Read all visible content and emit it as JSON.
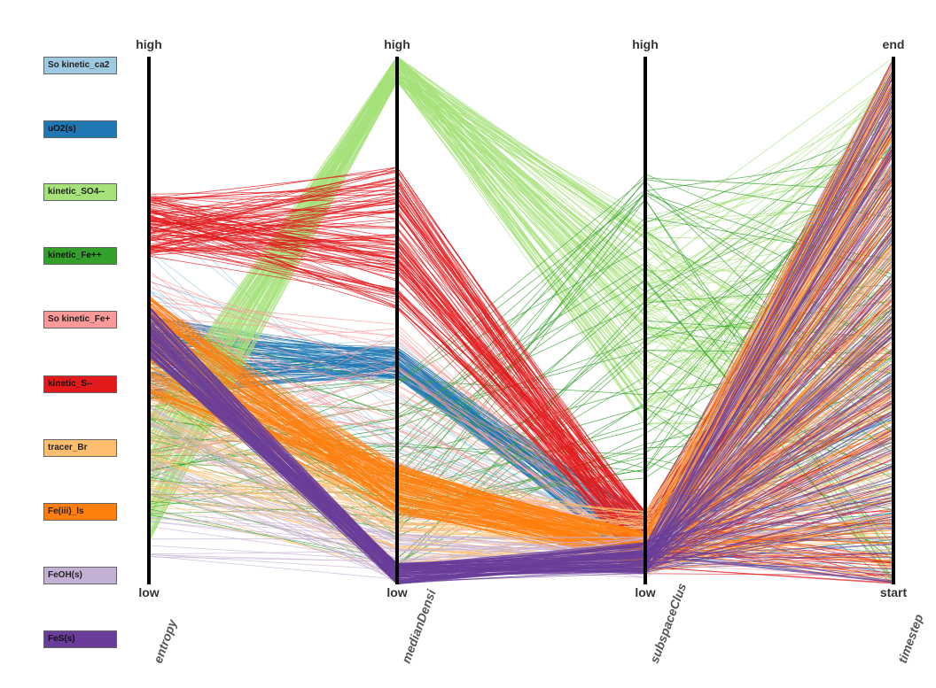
{
  "chart_data": {
    "type": "parallel-coordinates",
    "axes": [
      {
        "name": "entropy",
        "top_label": "high",
        "bottom_label": "low"
      },
      {
        "name": "medianDensi",
        "top_label": "high",
        "bottom_label": "low"
      },
      {
        "name": "subspaceClus",
        "top_label": "high",
        "bottom_label": "low"
      },
      {
        "name": "timestep",
        "top_label": "end",
        "bottom_label": "start"
      }
    ],
    "series": [
      {
        "name": "So kinetic_ca2",
        "color": "#9ecae1"
      },
      {
        "name": "uO2(s)",
        "color": "#1f78b4"
      },
      {
        "name": "kinetic_SO4--",
        "color": "#a6e27a"
      },
      {
        "name": "kinetic_Fe++",
        "color": "#33a02c"
      },
      {
        "name": "So kinetic_Fe+",
        "color": "#fb9a99"
      },
      {
        "name": "kinetic_S--",
        "color": "#e31a1c"
      },
      {
        "name": "tracer_Br",
        "color": "#fdbf6f"
      },
      {
        "name": "Fe(iii)_ls",
        "color": "#ff7f0e"
      },
      {
        "name": "FeOH(s)",
        "color": "#c5b0d5"
      },
      {
        "name": "FeS(s)",
        "color": "#6a3d9a"
      }
    ],
    "profiles": [
      {
        "series": 0,
        "count": 40,
        "values": [
          0.45,
          0.28,
          0.08,
          0.5
        ],
        "spread": [
          0.3,
          0.2,
          0.05,
          0.5
        ]
      },
      {
        "series": 1,
        "count": 90,
        "values": [
          0.43,
          0.42,
          0.08,
          0.5
        ],
        "spread": [
          0.08,
          0.03,
          0.06,
          0.5
        ]
      },
      {
        "series": 2,
        "count": 120,
        "values": [
          0.2,
          0.98,
          0.5,
          0.5
        ],
        "spread": [
          0.12,
          0.03,
          0.2,
          0.5
        ]
      },
      {
        "series": 3,
        "count": 50,
        "values": [
          0.3,
          0.2,
          0.5,
          0.5
        ],
        "spread": [
          0.2,
          0.2,
          0.3,
          0.5
        ]
      },
      {
        "series": 4,
        "count": 50,
        "values": [
          0.4,
          0.3,
          0.08,
          0.5
        ],
        "spread": [
          0.2,
          0.2,
          0.06,
          0.5
        ]
      },
      {
        "series": 5,
        "count": 110,
        "values": [
          0.68,
          0.66,
          0.08,
          0.5
        ],
        "spread": [
          0.06,
          0.14,
          0.06,
          0.5
        ]
      },
      {
        "series": 6,
        "count": 90,
        "values": [
          0.32,
          0.12,
          0.08,
          0.5
        ],
        "spread": [
          0.18,
          0.1,
          0.06,
          0.5
        ]
      },
      {
        "series": 7,
        "count": 120,
        "values": [
          0.45,
          0.18,
          0.06,
          0.5
        ],
        "spread": [
          0.1,
          0.05,
          0.04,
          0.5
        ]
      },
      {
        "series": 8,
        "count": 40,
        "values": [
          0.2,
          0.05,
          0.05,
          0.5
        ],
        "spread": [
          0.15,
          0.05,
          0.04,
          0.5
        ]
      },
      {
        "series": 9,
        "count": 120,
        "values": [
          0.48,
          0.02,
          0.05,
          0.5
        ],
        "spread": [
          0.05,
          0.02,
          0.03,
          0.5
        ]
      }
    ]
  }
}
